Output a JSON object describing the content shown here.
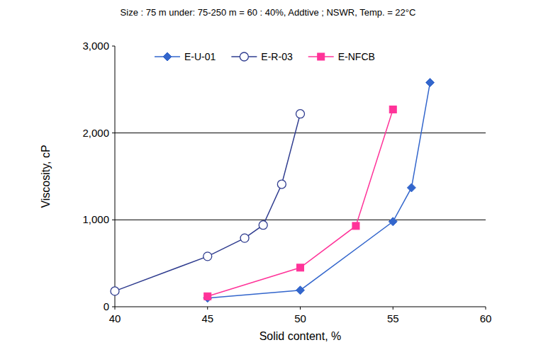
{
  "chart_data": {
    "type": "line",
    "title": "Size : 75 m under: 75-250 m = 60 : 40%, Addtive ; NSWR, Temp. = 22°C",
    "x_label": "Solid content, %",
    "y_label": "Viscosity, cP",
    "xlim": [
      40,
      60
    ],
    "xticks": [
      40,
      45,
      50,
      55,
      60
    ],
    "ylim": [
      0,
      3000
    ],
    "yticks": [
      0,
      {
        "value": 1000,
        "label": "1,000"
      },
      {
        "value": 2000,
        "label": "2,000"
      },
      {
        "value": 3000,
        "label": "3,000"
      }
    ],
    "grid": true,
    "legend": "top",
    "series": [
      {
        "name": "E-U-01",
        "color": "#3366cc",
        "marker": "diamond",
        "x": [
          45,
          50,
          55,
          56,
          57
        ],
        "values": [
          100,
          190,
          980,
          1370,
          2580
        ]
      },
      {
        "name": "E-R-03",
        "color": "#2f3c8f",
        "marker": "open_circle",
        "x": [
          40,
          45,
          47,
          48,
          49,
          50
        ],
        "values": [
          180,
          580,
          790,
          940,
          1410,
          2220
        ]
      },
      {
        "name": "E-NFCB",
        "color": "#ff3399",
        "marker": "square",
        "x": [
          45,
          50,
          53,
          55
        ],
        "values": [
          120,
          450,
          930,
          2270
        ]
      }
    ]
  }
}
